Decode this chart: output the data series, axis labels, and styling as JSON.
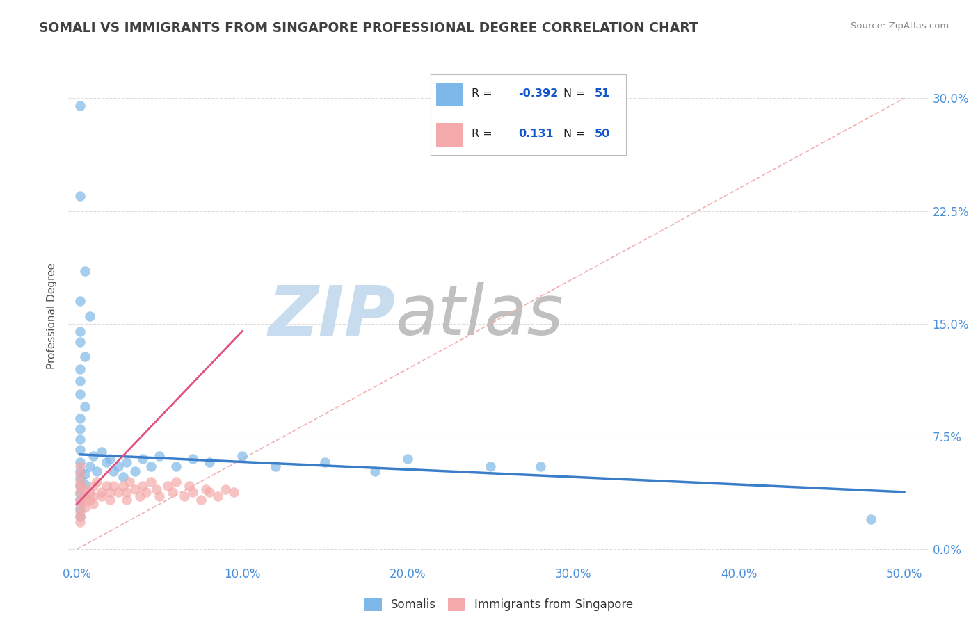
{
  "title": "SOMALI VS IMMIGRANTS FROM SINGAPORE PROFESSIONAL DEGREE CORRELATION CHART",
  "source": "Source: ZipAtlas.com",
  "xlabel_ticks": [
    "0.0%",
    "10.0%",
    "20.0%",
    "30.0%",
    "40.0%",
    "50.0%"
  ],
  "xlabel_tick_vals": [
    0.0,
    0.1,
    0.2,
    0.3,
    0.4,
    0.5
  ],
  "ylabel": "Professional Degree",
  "ylabel_ticks": [
    "0.0%",
    "7.5%",
    "15.0%",
    "22.5%",
    "30.0%"
  ],
  "ylabel_tick_vals": [
    0.0,
    0.075,
    0.15,
    0.225,
    0.3
  ],
  "xlim": [
    -0.005,
    0.515
  ],
  "ylim": [
    -0.01,
    0.32
  ],
  "somali_R": -0.392,
  "somali_N": 51,
  "singapore_R": 0.131,
  "singapore_N": 50,
  "somali_color": "#7EB8E8",
  "singapore_color": "#F4AAAA",
  "somali_line_color": "#3A7DC9",
  "singapore_line_color": "#E05080",
  "ref_line_color": "#F0B0B0",
  "grid_color": "#DDDDDD",
  "title_color": "#404040",
  "axis_tick_color": "#4A90D9",
  "watermark_zip": "#C8DCF0",
  "watermark_atlas": "#C0C0C0",
  "somali_scatter": [
    [
      0.002,
      0.295
    ],
    [
      0.002,
      0.235
    ],
    [
      0.005,
      0.185
    ],
    [
      0.002,
      0.165
    ],
    [
      0.008,
      0.155
    ],
    [
      0.002,
      0.145
    ],
    [
      0.002,
      0.138
    ],
    [
      0.005,
      0.128
    ],
    [
      0.002,
      0.12
    ],
    [
      0.002,
      0.112
    ],
    [
      0.002,
      0.103
    ],
    [
      0.005,
      0.095
    ],
    [
      0.002,
      0.087
    ],
    [
      0.002,
      0.08
    ],
    [
      0.002,
      0.073
    ],
    [
      0.002,
      0.066
    ],
    [
      0.002,
      0.058
    ],
    [
      0.002,
      0.052
    ],
    [
      0.002,
      0.047
    ],
    [
      0.002,
      0.042
    ],
    [
      0.002,
      0.037
    ],
    [
      0.002,
      0.033
    ],
    [
      0.002,
      0.027
    ],
    [
      0.002,
      0.022
    ],
    [
      0.005,
      0.05
    ],
    [
      0.005,
      0.043
    ],
    [
      0.008,
      0.055
    ],
    [
      0.01,
      0.062
    ],
    [
      0.012,
      0.052
    ],
    [
      0.015,
      0.065
    ],
    [
      0.018,
      0.058
    ],
    [
      0.02,
      0.06
    ],
    [
      0.022,
      0.052
    ],
    [
      0.025,
      0.055
    ],
    [
      0.028,
      0.048
    ],
    [
      0.03,
      0.058
    ],
    [
      0.035,
      0.052
    ],
    [
      0.04,
      0.06
    ],
    [
      0.045,
      0.055
    ],
    [
      0.05,
      0.062
    ],
    [
      0.06,
      0.055
    ],
    [
      0.07,
      0.06
    ],
    [
      0.08,
      0.058
    ],
    [
      0.1,
      0.062
    ],
    [
      0.12,
      0.055
    ],
    [
      0.15,
      0.058
    ],
    [
      0.18,
      0.052
    ],
    [
      0.2,
      0.06
    ],
    [
      0.25,
      0.055
    ],
    [
      0.28,
      0.055
    ],
    [
      0.48,
      0.02
    ]
  ],
  "singapore_scatter": [
    [
      0.002,
      0.055
    ],
    [
      0.002,
      0.05
    ],
    [
      0.002,
      0.045
    ],
    [
      0.002,
      0.042
    ],
    [
      0.002,
      0.038
    ],
    [
      0.002,
      0.033
    ],
    [
      0.002,
      0.03
    ],
    [
      0.002,
      0.025
    ],
    [
      0.002,
      0.022
    ],
    [
      0.002,
      0.018
    ],
    [
      0.005,
      0.04
    ],
    [
      0.005,
      0.035
    ],
    [
      0.005,
      0.032
    ],
    [
      0.005,
      0.028
    ],
    [
      0.008,
      0.038
    ],
    [
      0.008,
      0.033
    ],
    [
      0.01,
      0.042
    ],
    [
      0.01,
      0.035
    ],
    [
      0.01,
      0.03
    ],
    [
      0.012,
      0.045
    ],
    [
      0.015,
      0.038
    ],
    [
      0.015,
      0.035
    ],
    [
      0.018,
      0.042
    ],
    [
      0.02,
      0.038
    ],
    [
      0.02,
      0.033
    ],
    [
      0.022,
      0.042
    ],
    [
      0.025,
      0.038
    ],
    [
      0.028,
      0.042
    ],
    [
      0.03,
      0.038
    ],
    [
      0.03,
      0.033
    ],
    [
      0.032,
      0.045
    ],
    [
      0.035,
      0.04
    ],
    [
      0.038,
      0.035
    ],
    [
      0.04,
      0.042
    ],
    [
      0.042,
      0.038
    ],
    [
      0.045,
      0.045
    ],
    [
      0.048,
      0.04
    ],
    [
      0.05,
      0.035
    ],
    [
      0.055,
      0.042
    ],
    [
      0.058,
      0.038
    ],
    [
      0.06,
      0.045
    ],
    [
      0.065,
      0.035
    ],
    [
      0.068,
      0.042
    ],
    [
      0.07,
      0.038
    ],
    [
      0.075,
      0.033
    ],
    [
      0.078,
      0.04
    ],
    [
      0.08,
      0.038
    ],
    [
      0.085,
      0.035
    ],
    [
      0.09,
      0.04
    ],
    [
      0.095,
      0.038
    ]
  ],
  "somali_trendline_x": [
    0.002,
    0.5
  ],
  "somali_trendline_y": [
    0.063,
    0.038
  ],
  "singapore_trendline_x": [
    0.0,
    0.1
  ],
  "singapore_trendline_y": [
    0.03,
    0.145
  ],
  "ref_line_x": [
    0.0,
    0.5
  ],
  "ref_line_y": [
    0.0,
    0.3
  ]
}
